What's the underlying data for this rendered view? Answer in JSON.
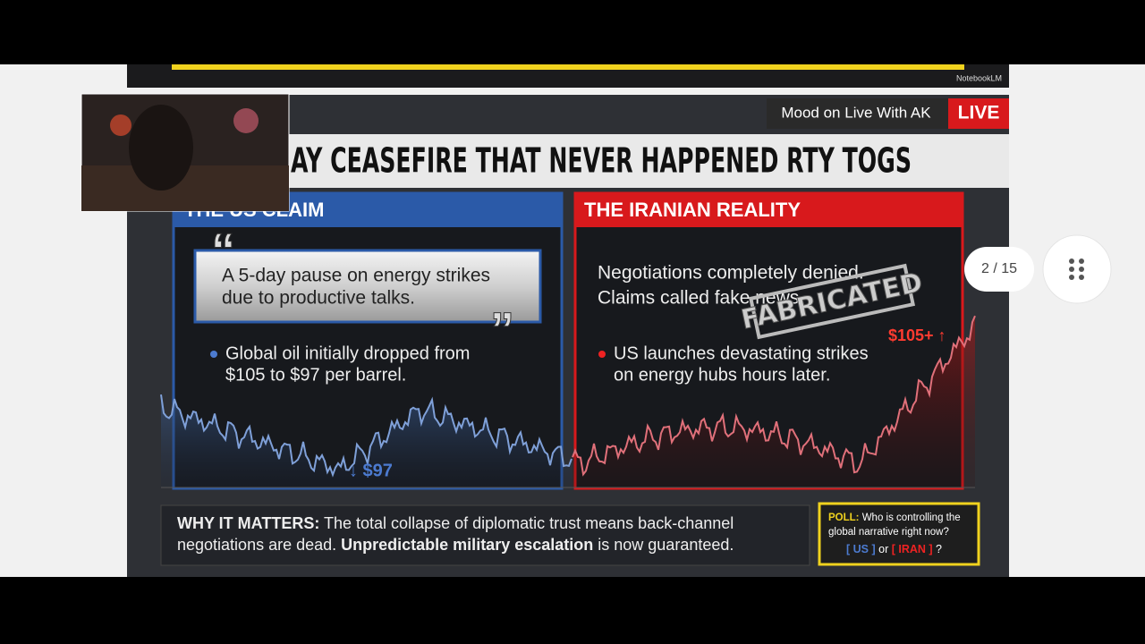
{
  "header": {
    "brand": "NotebookLM",
    "show": "Mood on Live With AK",
    "live": "LIVE",
    "title": "AY CEASEFIRE THAT NEVER HAPPENED RTY TOGS"
  },
  "left_panel": {
    "heading": "THE US CLAIM",
    "quote": [
      "A 5-day pause on energy strikes",
      "due to productive talks."
    ],
    "bullet": [
      "Global oil initially dropped from",
      "$105 to $97 per barrel."
    ],
    "price_label": "↓ $97"
  },
  "right_panel": {
    "heading": "THE IRANIAN REALITY",
    "statement": [
      "Negotiations completely denied.",
      "Claims called fake news."
    ],
    "stamp": "FABRICATED",
    "bullet": [
      "US launches devastating strikes",
      "on energy hubs hours later."
    ],
    "price_label": "$105+ ↑"
  },
  "footer": {
    "label": "WHY IT MATTERS:",
    "line1": "The total collapse of diplomatic trust means back-channel",
    "line2_a": "negotiations are dead.",
    "line2_b": "Unpredictable military escalation",
    "line2_c": "is now guaranteed."
  },
  "poll": {
    "label": "POLL:",
    "question_1": "Who is controlling the",
    "question_2": "global narrative right now?",
    "option_1": "[ US ]",
    "or": "or",
    "option_2": "[ IRAN ]",
    "end": "?"
  },
  "viewer": {
    "page": "2 / 15"
  }
}
